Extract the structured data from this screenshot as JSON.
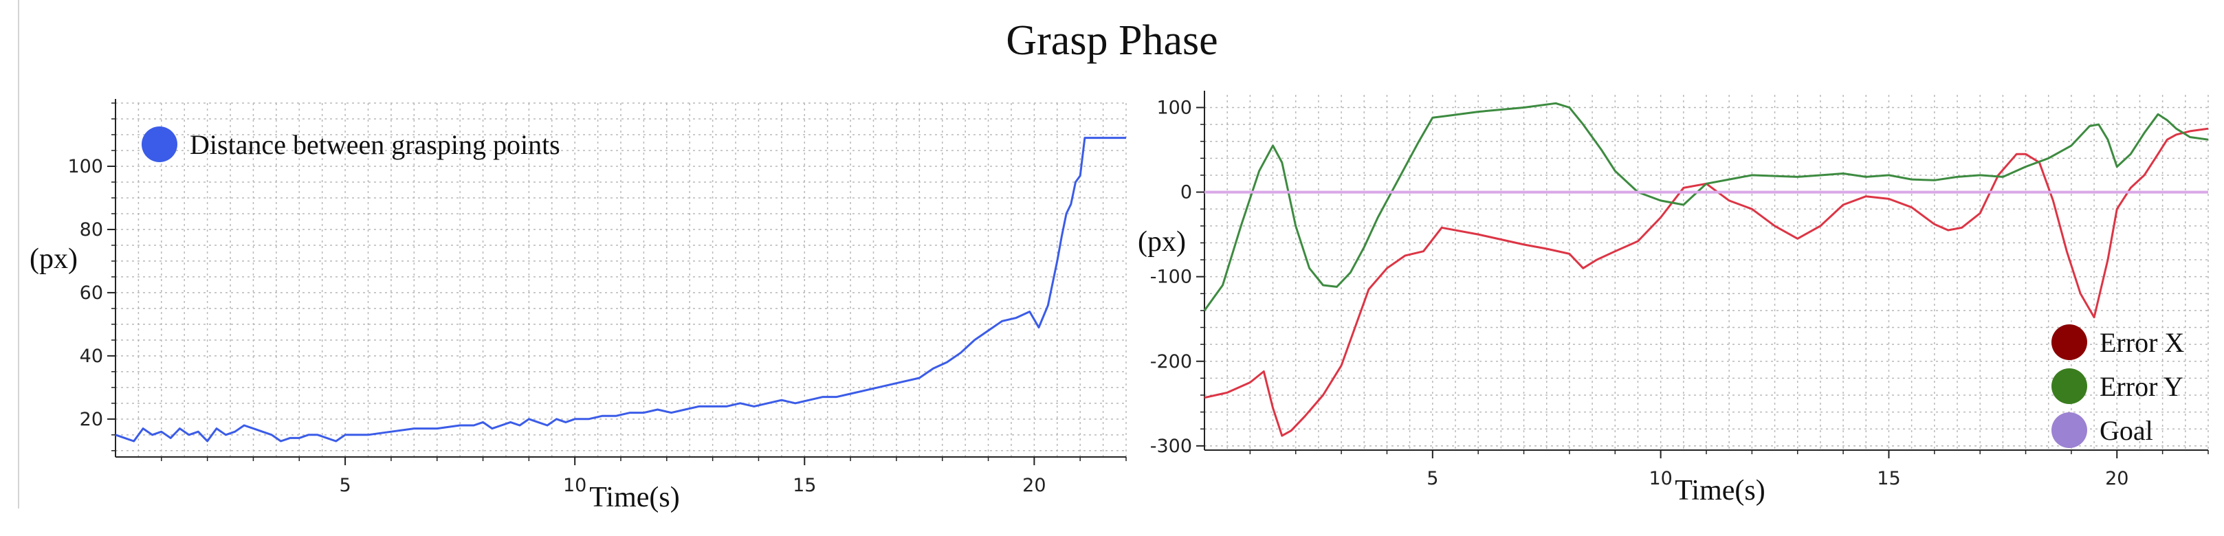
{
  "title": "Grasp Phase",
  "chart_data": [
    {
      "type": "line",
      "xlabel": "Time(s)",
      "ylabel": "(px)",
      "xlim": [
        0,
        22
      ],
      "ylim": [
        8,
        120
      ],
      "xticks": [
        5,
        10,
        15,
        20
      ],
      "yticks": [
        20,
        40,
        60,
        80,
        100
      ],
      "grid": true,
      "legend_position": "top-left",
      "series": [
        {
          "name": "Distance between grasping points",
          "color": "#3b5ce8",
          "x": [
            0.0,
            0.2,
            0.4,
            0.6,
            0.8,
            1.0,
            1.2,
            1.4,
            1.6,
            1.8,
            2.0,
            2.2,
            2.4,
            2.6,
            2.8,
            3.0,
            3.2,
            3.4,
            3.6,
            3.8,
            4.0,
            4.2,
            4.4,
            4.6,
            4.8,
            5.0,
            5.5,
            6.0,
            6.5,
            7.0,
            7.5,
            7.8,
            8.0,
            8.2,
            8.4,
            8.6,
            8.8,
            9.0,
            9.2,
            9.4,
            9.6,
            9.8,
            10.0,
            10.3,
            10.6,
            10.9,
            11.2,
            11.5,
            11.8,
            12.1,
            12.4,
            12.7,
            13.0,
            13.3,
            13.6,
            13.9,
            14.2,
            14.5,
            14.8,
            15.1,
            15.4,
            15.7,
            16.0,
            16.3,
            16.6,
            16.9,
            17.2,
            17.5,
            17.8,
            18.1,
            18.4,
            18.7,
            19.0,
            19.3,
            19.6,
            19.9,
            20.1,
            20.3,
            20.5,
            20.6,
            20.7,
            20.8,
            20.9,
            21.0,
            21.1,
            21.3,
            21.6,
            22.0
          ],
          "y": [
            15,
            14,
            13,
            17,
            15,
            16,
            14,
            17,
            15,
            16,
            13,
            17,
            15,
            16,
            18,
            17,
            16,
            15,
            13,
            14,
            14,
            15,
            15,
            14,
            13,
            15,
            15,
            16,
            17,
            17,
            18,
            18,
            19,
            17,
            18,
            19,
            18,
            20,
            19,
            18,
            20,
            19,
            20,
            20,
            21,
            21,
            22,
            22,
            23,
            22,
            23,
            24,
            24,
            24,
            25,
            24,
            25,
            26,
            25,
            26,
            27,
            27,
            28,
            29,
            30,
            31,
            32,
            33,
            36,
            38,
            41,
            45,
            48,
            51,
            52,
            54,
            49,
            56,
            70,
            78,
            85,
            88,
            95,
            97,
            109,
            109,
            109,
            109
          ]
        }
      ]
    },
    {
      "type": "line",
      "xlabel": "Time(s)",
      "ylabel": "(px)",
      "xlim": [
        0,
        22
      ],
      "ylim": [
        -305,
        115
      ],
      "xticks": [
        5,
        10,
        15,
        20
      ],
      "yticks": [
        -300,
        -200,
        -100,
        0,
        100
      ],
      "grid": true,
      "legend_position": "bottom-right",
      "series": [
        {
          "name": "Error X",
          "legend_color": "#8b0000",
          "color": "#dc3545",
          "x": [
            0.0,
            0.5,
            1.0,
            1.3,
            1.5,
            1.7,
            1.9,
            2.2,
            2.6,
            3.0,
            3.3,
            3.6,
            4.0,
            4.4,
            4.8,
            5.2,
            6.0,
            7.0,
            7.5,
            8.0,
            8.3,
            8.6,
            9.0,
            9.5,
            10.0,
            10.5,
            11.0,
            11.5,
            12.0,
            12.5,
            13.0,
            13.5,
            14.0,
            14.5,
            15.0,
            15.5,
            16.0,
            16.3,
            16.6,
            17.0,
            17.4,
            17.8,
            18.0,
            18.3,
            18.6,
            18.9,
            19.2,
            19.5,
            19.8,
            20.0,
            20.3,
            20.6,
            20.9,
            21.1,
            21.3,
            21.6,
            22.0
          ],
          "y": [
            -243,
            -237,
            -225,
            -212,
            -255,
            -288,
            -282,
            -265,
            -240,
            -205,
            -160,
            -115,
            -90,
            -75,
            -70,
            -42,
            -50,
            -62,
            -67,
            -73,
            -90,
            -80,
            -70,
            -58,
            -30,
            5,
            10,
            -10,
            -20,
            -40,
            -55,
            -40,
            -15,
            -5,
            -8,
            -18,
            -38,
            -45,
            -42,
            -25,
            20,
            45,
            45,
            35,
            -10,
            -70,
            -120,
            -148,
            -80,
            -20,
            5,
            20,
            45,
            62,
            68,
            72,
            75
          ]
        },
        {
          "name": "Error Y",
          "legend_color": "#3a7d1e",
          "color": "#3d8b40",
          "x": [
            0.0,
            0.4,
            0.8,
            1.2,
            1.5,
            1.7,
            2.0,
            2.3,
            2.6,
            2.9,
            3.2,
            3.5,
            3.8,
            4.1,
            4.4,
            4.7,
            5.0,
            5.3,
            6.0,
            7.0,
            7.7,
            8.0,
            8.3,
            8.7,
            9.0,
            9.5,
            10.0,
            10.5,
            11.0,
            11.5,
            12.0,
            13.0,
            14.0,
            14.5,
            15.0,
            15.5,
            16.0,
            16.5,
            17.0,
            17.5,
            18.0,
            18.5,
            19.0,
            19.4,
            19.6,
            19.8,
            20.0,
            20.3,
            20.6,
            20.9,
            21.1,
            21.3,
            21.6,
            22.0
          ],
          "y": [
            -140,
            -110,
            -40,
            25,
            55,
            35,
            -40,
            -90,
            -110,
            -112,
            -95,
            -65,
            -30,
            0,
            30,
            60,
            88,
            90,
            95,
            100,
            105,
            100,
            80,
            50,
            25,
            0,
            -10,
            -15,
            10,
            15,
            20,
            18,
            22,
            18,
            20,
            15,
            14,
            18,
            20,
            18,
            30,
            40,
            55,
            78,
            80,
            62,
            30,
            45,
            70,
            92,
            85,
            75,
            65,
            62
          ]
        },
        {
          "name": "Goal",
          "legend_color": "#9c82d2",
          "color": "#d9a8e8",
          "x": [
            0,
            22
          ],
          "y": [
            0,
            0
          ]
        }
      ]
    }
  ]
}
